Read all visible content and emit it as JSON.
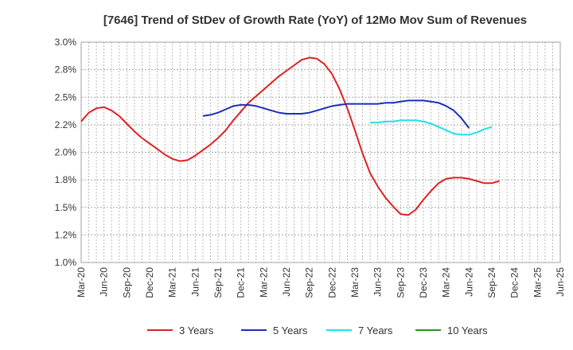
{
  "chart_data": {
    "type": "line",
    "title": "[7646]  Trend of StDev of Growth Rate (YoY) of 12Mo Mov Sum of Revenues",
    "xlabel": "",
    "ylabel": "",
    "ylim": [
      1.0,
      3.0
    ],
    "y_ticks": [
      1.0,
      1.25,
      1.5,
      1.75,
      2.0,
      2.25,
      2.5,
      2.75,
      3.0
    ],
    "y_tick_labels": [
      "1.0%",
      "1.2%",
      "1.5%",
      "1.8%",
      "2.0%",
      "2.2%",
      "2.5%",
      "2.8%",
      "3.0%"
    ],
    "x_tick_labels": [
      "Mar-20",
      "Jun-20",
      "Sep-20",
      "Dec-20",
      "Mar-21",
      "Jun-21",
      "Sep-21",
      "Dec-21",
      "Mar-22",
      "Jun-22",
      "Sep-22",
      "Dec-22",
      "Mar-23",
      "Jun-23",
      "Sep-23",
      "Dec-23",
      "Mar-24",
      "Jun-24",
      "Sep-24",
      "Dec-24",
      "Mar-25",
      "Jun-25"
    ],
    "grid": true,
    "legend_position": "bottom",
    "series": [
      {
        "name": "3 Years",
        "color": "#dd2222",
        "start_index": 0,
        "values": [
          2.28,
          2.36,
          2.4,
          2.41,
          2.38,
          2.33,
          2.26,
          2.19,
          2.13,
          2.08,
          2.03,
          1.98,
          1.94,
          1.92,
          1.93,
          1.97,
          2.02,
          2.07,
          2.13,
          2.2,
          2.29,
          2.37,
          2.45,
          2.51,
          2.57,
          2.63,
          2.69,
          2.74,
          2.79,
          2.84,
          2.86,
          2.85,
          2.8,
          2.71,
          2.57,
          2.4,
          2.2,
          1.99,
          1.81,
          1.69,
          1.59,
          1.51,
          1.44,
          1.43,
          1.48,
          1.57,
          1.65,
          1.72,
          1.76,
          1.77,
          1.77,
          1.76,
          1.74,
          1.72,
          1.72,
          1.74
        ]
      },
      {
        "name": "5 Years",
        "color": "#1a2fbf",
        "start_index": 16,
        "values": [
          2.33,
          2.34,
          2.36,
          2.39,
          2.42,
          2.43,
          2.43,
          2.42,
          2.4,
          2.38,
          2.36,
          2.35,
          2.35,
          2.35,
          2.36,
          2.38,
          2.4,
          2.42,
          2.43,
          2.44,
          2.44,
          2.44,
          2.44,
          2.44,
          2.45,
          2.45,
          2.46,
          2.47,
          2.47,
          2.47,
          2.46,
          2.45,
          2.42,
          2.38,
          2.31,
          2.22
        ]
      },
      {
        "name": "7 Years",
        "color": "#22e0e8",
        "start_index": 38,
        "values": [
          2.27,
          2.27,
          2.28,
          2.28,
          2.29,
          2.29,
          2.29,
          2.28,
          2.26,
          2.23,
          2.2,
          2.17,
          2.16,
          2.16,
          2.18,
          2.21,
          2.23
        ]
      },
      {
        "name": "10 Years",
        "color": "#229922",
        "start_index": 0,
        "values": []
      }
    ]
  }
}
